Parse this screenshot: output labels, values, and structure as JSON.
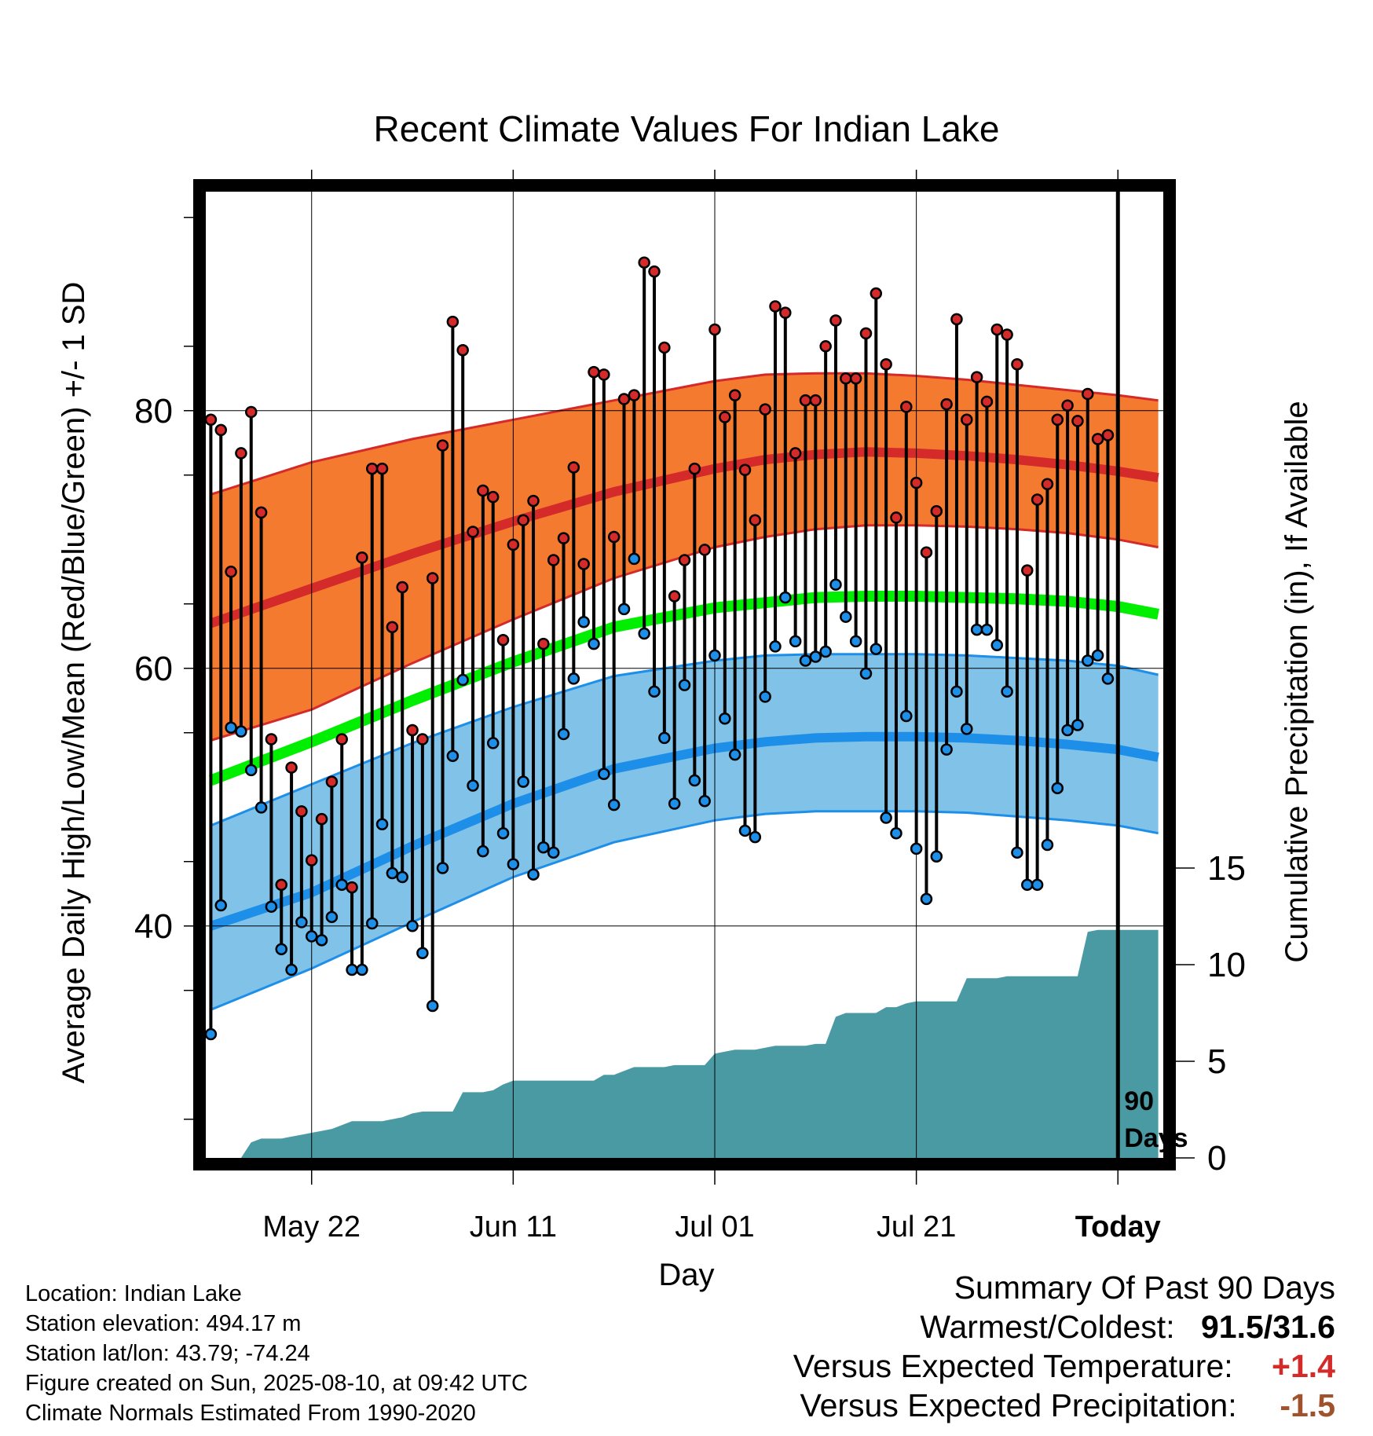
{
  "chart_data": {
    "type": "line",
    "title": "Recent Climate Values For Indian Lake",
    "xlabel": "Day",
    "ylabel": "Average Daily High/Low/Mean (Red/Blue/Green) +/- 1 SD",
    "y2label": "Cumulative Precipitation (in), If Available",
    "x_tick_labels": [
      "May 22",
      "Jun 11",
      "Jul 01",
      "Jul 21",
      "Today"
    ],
    "x_tick_days": [
      10,
      30,
      50,
      70,
      90
    ],
    "y_ticks": [
      40,
      60,
      80
    ],
    "ylim": [
      22,
      97
    ],
    "y2_ticks": [
      0,
      5,
      10,
      15
    ],
    "y2lim": [
      0,
      50
    ],
    "xlim": [
      -0.5,
      94.5
    ],
    "grid": true,
    "marker_label": "90 Days",
    "colors": {
      "high_band": "#f47a30",
      "high_line": "#d42a2a",
      "low_band": "#80c2e8",
      "low_line": "#1e8fe8",
      "mean_line": "#00ee00",
      "precip": "#4a9aa4",
      "obs_high_dot": "#d42a2a",
      "obs_low_dot": "#1e8fe8"
    },
    "normals": {
      "days": [
        0,
        10,
        20,
        30,
        40,
        50,
        55,
        60,
        65,
        70,
        75,
        80,
        85,
        90,
        94
      ],
      "normal_high": [
        63.5,
        66.2,
        68.9,
        71.4,
        73.7,
        75.5,
        76.2,
        76.6,
        76.8,
        76.7,
        76.5,
        76.2,
        75.8,
        75.3,
        74.8
      ],
      "high_band_upper": [
        73.5,
        76.0,
        77.8,
        79.3,
        80.8,
        82.3,
        82.8,
        82.9,
        82.9,
        82.7,
        82.4,
        82.0,
        81.6,
        81.2,
        80.8
      ],
      "high_band_lower": [
        54.4,
        56.8,
        60.4,
        63.8,
        67.0,
        69.4,
        70.2,
        70.8,
        71.1,
        71.1,
        71.0,
        70.8,
        70.5,
        70.0,
        69.4
      ],
      "normal_mean": [
        51.3,
        54.3,
        57.5,
        60.5,
        63.2,
        64.7,
        65.1,
        65.5,
        65.6,
        65.6,
        65.5,
        65.4,
        65.2,
        64.8,
        64.2
      ],
      "normal_low": [
        40.0,
        42.6,
        46.2,
        49.5,
        52.2,
        53.8,
        54.3,
        54.6,
        54.7,
        54.7,
        54.6,
        54.4,
        54.1,
        53.7,
        53.1
      ],
      "low_band_upper": [
        47.8,
        51.0,
        54.2,
        57.0,
        59.4,
        60.6,
        61.0,
        61.1,
        61.1,
        61.1,
        61.0,
        60.8,
        60.6,
        60.2,
        59.5
      ],
      "low_band_lower": [
        33.5,
        36.7,
        40.3,
        43.8,
        46.5,
        48.2,
        48.7,
        48.9,
        48.9,
        48.9,
        48.8,
        48.5,
        48.2,
        47.8,
        47.2
      ]
    },
    "series": [
      {
        "name": "Observed high",
        "x": [
          0,
          1,
          2,
          3,
          4,
          5,
          6,
          7,
          8,
          9,
          10,
          11,
          12,
          13,
          14,
          15,
          16,
          17,
          18,
          19,
          20,
          21,
          22,
          23,
          24,
          25,
          26,
          27,
          28,
          29,
          30,
          31,
          32,
          33,
          34,
          35,
          36,
          37,
          38,
          39,
          40,
          41,
          42,
          43,
          44,
          45,
          46,
          47,
          48,
          49,
          50,
          51,
          52,
          53,
          54,
          55,
          56,
          57,
          58,
          59,
          60,
          61,
          62,
          63,
          64,
          65,
          66,
          67,
          68,
          69,
          70,
          71,
          72,
          73,
          74,
          75,
          76,
          77,
          78,
          79,
          80,
          81,
          82,
          83,
          84,
          85,
          86,
          87,
          88,
          89
        ],
        "values": [
          79.3,
          78.5,
          67.5,
          76.7,
          79.9,
          72.1,
          54.5,
          43.2,
          52.3,
          48.9,
          45.1,
          48.3,
          51.2,
          54.5,
          43.0,
          68.6,
          75.5,
          75.5,
          63.2,
          66.3,
          55.2,
          54.5,
          67.0,
          77.3,
          86.9,
          84.7,
          70.6,
          73.8,
          73.3,
          62.2,
          69.6,
          71.5,
          73.0,
          61.9,
          68.4,
          70.1,
          75.6,
          68.1,
          83.0,
          82.8,
          70.2,
          80.9,
          81.2,
          91.5,
          90.8,
          84.9,
          65.6,
          68.4,
          75.5,
          69.2,
          86.3,
          79.5,
          81.2,
          75.4,
          71.5,
          80.1,
          88.1,
          87.6,
          76.7,
          80.8,
          80.8,
          85.0,
          87.0,
          82.5,
          82.5,
          86.0,
          89.1,
          83.6,
          71.7,
          80.3,
          74.4,
          69.0,
          72.2,
          80.5,
          87.1,
          79.3,
          82.6,
          80.7,
          86.3,
          85.9,
          83.6,
          67.6,
          73.1,
          74.3,
          79.3,
          80.4,
          79.2,
          81.3,
          77.8,
          78.1
        ]
      },
      {
        "name": "Observed low",
        "x": [
          0,
          1,
          2,
          3,
          4,
          5,
          6,
          7,
          8,
          9,
          10,
          11,
          12,
          13,
          14,
          15,
          16,
          17,
          18,
          19,
          20,
          21,
          22,
          23,
          24,
          25,
          26,
          27,
          28,
          29,
          30,
          31,
          32,
          33,
          34,
          35,
          36,
          37,
          38,
          39,
          40,
          41,
          42,
          43,
          44,
          45,
          46,
          47,
          48,
          49,
          50,
          51,
          52,
          53,
          54,
          55,
          56,
          57,
          58,
          59,
          60,
          61,
          62,
          63,
          64,
          65,
          66,
          67,
          68,
          69,
          70,
          71,
          72,
          73,
          74,
          75,
          76,
          77,
          78,
          79,
          80,
          81,
          82,
          83,
          84,
          85,
          86,
          87,
          88,
          89
        ],
        "values": [
          31.6,
          41.6,
          55.4,
          55.1,
          52.1,
          49.2,
          41.5,
          38.2,
          36.6,
          40.3,
          39.2,
          38.9,
          40.7,
          43.2,
          36.6,
          36.6,
          40.2,
          47.9,
          44.1,
          43.8,
          40.0,
          37.9,
          33.8,
          44.5,
          53.2,
          59.1,
          50.9,
          45.8,
          54.2,
          47.2,
          44.8,
          51.2,
          44.0,
          46.1,
          45.7,
          54.9,
          59.2,
          63.6,
          61.9,
          51.8,
          49.4,
          64.6,
          68.5,
          62.7,
          58.2,
          54.6,
          49.5,
          58.7,
          51.3,
          49.7,
          61.0,
          56.1,
          53.3,
          47.4,
          46.9,
          57.8,
          61.7,
          65.5,
          62.1,
          60.6,
          60.9,
          61.3,
          66.5,
          64.0,
          62.1,
          59.6,
          61.5,
          48.4,
          47.2,
          56.3,
          46.0,
          42.1,
          45.4,
          53.7,
          58.2,
          55.3,
          63.0,
          63.0,
          61.8,
          58.2,
          45.7,
          43.2,
          43.2,
          46.3,
          50.7,
          55.2,
          55.6,
          60.6,
          61.0,
          59.2
        ]
      },
      {
        "name": "Cumulative precipitation",
        "x": [
          0,
          3,
          4,
          5,
          6,
          7,
          8,
          9,
          10,
          11,
          12,
          13,
          14,
          15,
          16,
          17,
          18,
          19,
          20,
          21,
          22,
          23,
          24,
          25,
          26,
          27,
          28,
          29,
          30,
          31,
          32,
          33,
          34,
          35,
          36,
          37,
          38,
          39,
          40,
          41,
          42,
          43,
          44,
          45,
          46,
          47,
          48,
          49,
          50,
          51,
          52,
          53,
          54,
          55,
          56,
          57,
          58,
          59,
          60,
          61,
          62,
          63,
          64,
          65,
          66,
          67,
          68,
          69,
          70,
          71,
          72,
          73,
          74,
          75,
          76,
          77,
          78,
          79,
          80,
          81,
          82,
          83,
          84,
          85,
          86,
          87,
          88,
          89,
          90,
          94
        ],
        "values": [
          0,
          0,
          0.8,
          1.0,
          1.0,
          1.0,
          1.1,
          1.2,
          1.3,
          1.4,
          1.5,
          1.7,
          1.9,
          1.9,
          1.9,
          1.9,
          2.0,
          2.1,
          2.3,
          2.4,
          2.4,
          2.4,
          2.4,
          3.4,
          3.4,
          3.4,
          3.5,
          3.8,
          4.0,
          4.0,
          4.0,
          4.0,
          4.0,
          4.0,
          4.0,
          4.0,
          4.0,
          4.3,
          4.3,
          4.5,
          4.7,
          4.7,
          4.7,
          4.7,
          4.8,
          4.8,
          4.8,
          4.8,
          5.4,
          5.5,
          5.6,
          5.6,
          5.6,
          5.7,
          5.8,
          5.8,
          5.8,
          5.8,
          5.9,
          5.9,
          7.3,
          7.5,
          7.5,
          7.5,
          7.5,
          7.8,
          7.8,
          8.0,
          8.1,
          8.1,
          8.1,
          8.1,
          8.1,
          9.3,
          9.3,
          9.3,
          9.3,
          9.4,
          9.4,
          9.4,
          9.4,
          9.4,
          9.4,
          9.4,
          9.4,
          11.7,
          11.8,
          11.8,
          11.8,
          11.8
        ]
      }
    ]
  },
  "info": {
    "location": "Location: Indian Lake",
    "elevation": "Station elevation: 494.17 m",
    "latlon": "Station lat/lon: 43.79; -74.24",
    "created": "Figure created on Sun, 2025-08-10, at 09:42 UTC",
    "normals": "Climate Normals Estimated From 1990-2020"
  },
  "summary": {
    "title": "Summary Of Past 90 Days",
    "warmest_label": "Warmest/Coldest:",
    "warmest_value": "91.5/31.6",
    "temp_label": "Versus Expected Temperature:",
    "temp_value": "+1.4",
    "temp_color": "#d42a2a",
    "precip_label": "Versus Expected Precipitation:",
    "precip_value": "-1.5",
    "precip_color": "#a0522d"
  }
}
